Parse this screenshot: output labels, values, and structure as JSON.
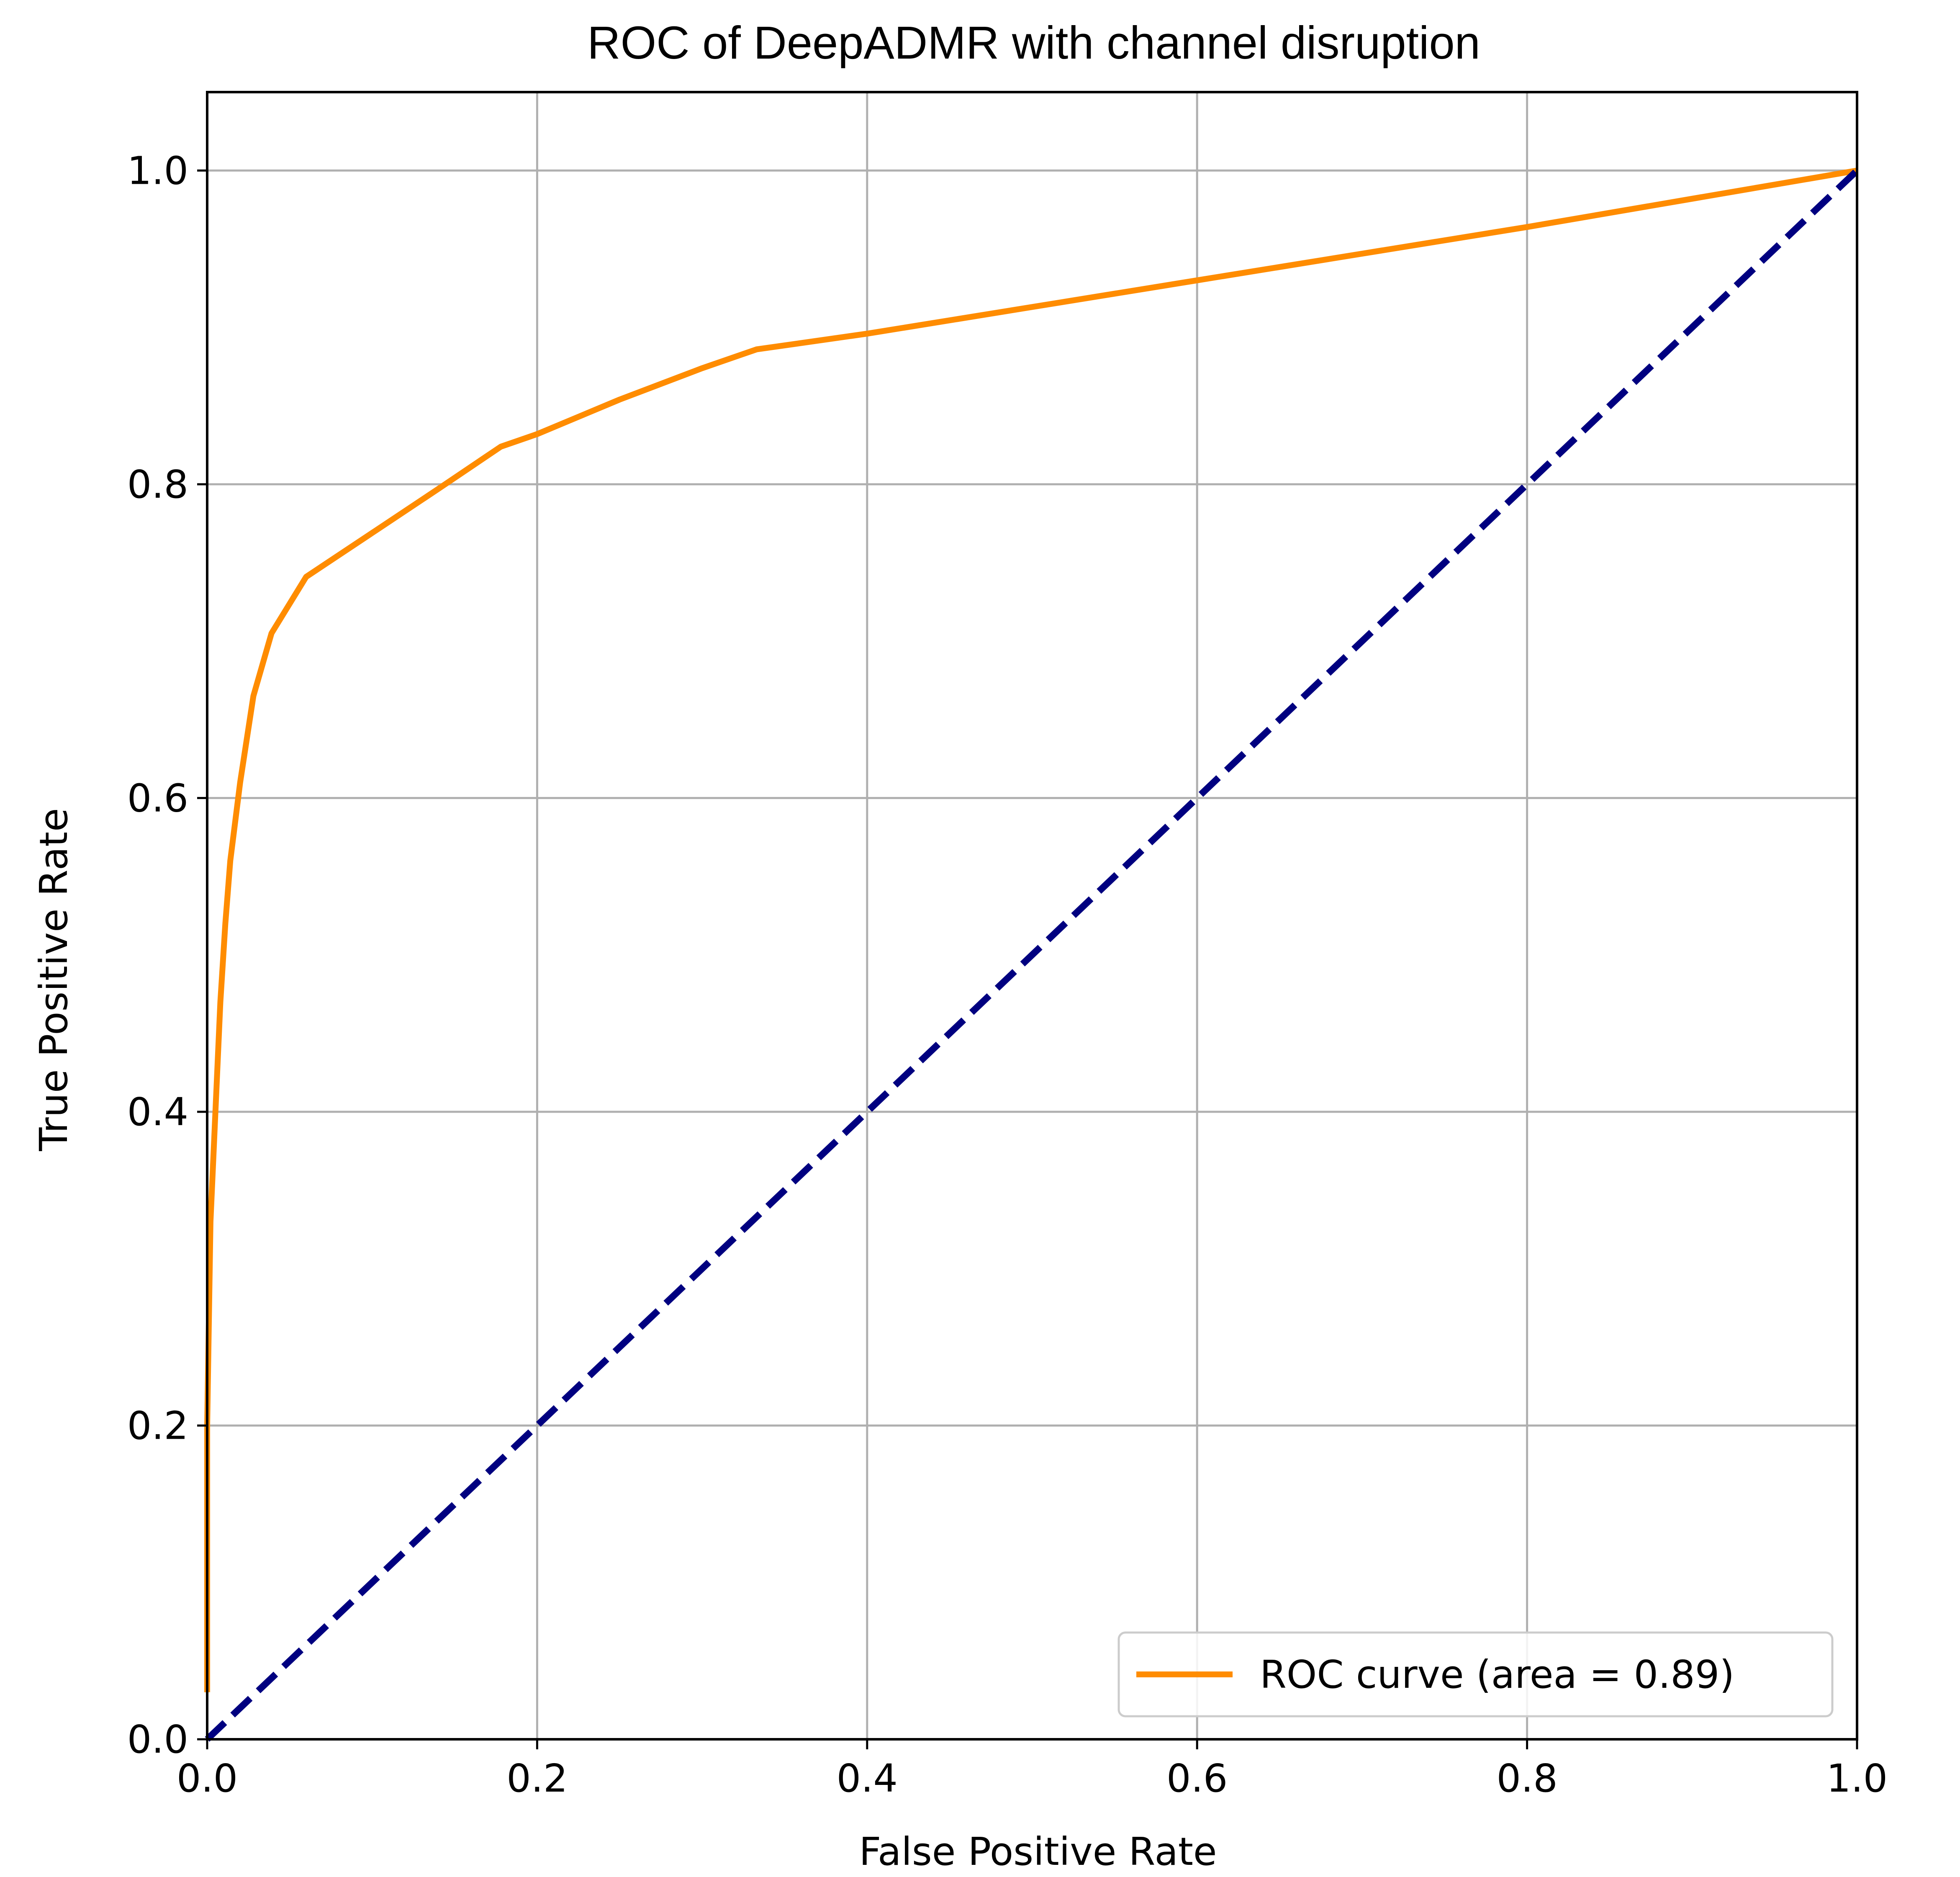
{
  "chart_data": {
    "type": "line",
    "title": "ROC of DeepADMR with channel disruption",
    "xlabel": "False Positive Rate",
    "ylabel": "True Positive Rate",
    "xlim": [
      0.0,
      1.0
    ],
    "ylim": [
      0.0,
      1.05
    ],
    "xticks": [
      0.0,
      0.2,
      0.4,
      0.6,
      0.8,
      1.0
    ],
    "yticks": [
      0.0,
      0.2,
      0.4,
      0.6,
      0.8,
      1.0
    ],
    "xtick_labels": [
      "0.0",
      "0.2",
      "0.4",
      "0.6",
      "0.8",
      "1.0"
    ],
    "ytick_labels": [
      "0.0",
      "0.2",
      "0.4",
      "0.6",
      "0.8",
      "1.0"
    ],
    "grid": true,
    "legend_position": "lower-right",
    "series": [
      {
        "name": "ROC curve (area = 0.89)",
        "color": "#ff8c00",
        "style": "solid",
        "x": [
          0.0,
          0.0,
          0.002,
          0.005,
          0.008,
          0.011,
          0.014,
          0.02,
          0.028,
          0.039,
          0.06,
          0.1,
          0.14,
          0.178,
          0.2,
          0.25,
          0.3,
          0.333,
          0.4,
          0.5,
          0.6,
          0.7,
          0.8,
          0.9,
          1.0
        ],
        "y": [
          0.03,
          0.2,
          0.33,
          0.4,
          0.47,
          0.52,
          0.56,
          0.61,
          0.665,
          0.705,
          0.741,
          0.769,
          0.797,
          0.824,
          0.832,
          0.854,
          0.874,
          0.886,
          0.896,
          0.913,
          0.93,
          0.947,
          0.964,
          0.982,
          1.0
        ]
      },
      {
        "name": "",
        "color": "#000080",
        "style": "dashed",
        "x": [
          0.0,
          1.0
        ],
        "y": [
          0.0,
          1.0
        ]
      }
    ]
  },
  "legend": {
    "entries": [
      {
        "label": "ROC curve (area = 0.89)",
        "color": "#ff8c00"
      }
    ]
  }
}
